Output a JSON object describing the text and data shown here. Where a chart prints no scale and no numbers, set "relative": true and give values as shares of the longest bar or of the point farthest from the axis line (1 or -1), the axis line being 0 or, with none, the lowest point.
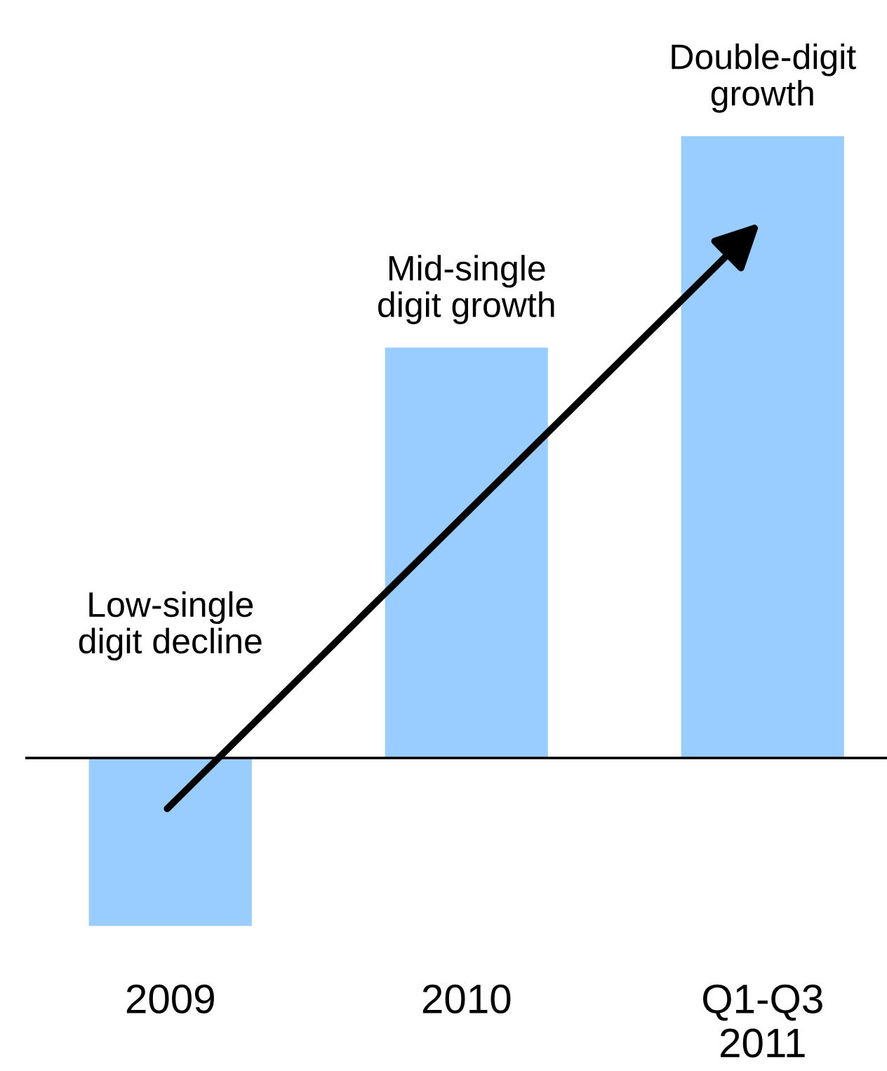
{
  "chart_data": {
    "type": "bar",
    "relative": true,
    "categories": [
      "2009",
      "2010",
      "Q1-Q3\n2011"
    ],
    "values": [
      -0.27,
      0.66,
      1
    ],
    "color": "#99ccff",
    "annotations": [
      "Low-single\ndigit decline",
      {
        "text": "Mid-single\ndigit growth",
        "x": "2010",
        "y": 0.66
      },
      {
        "text": "Double-digit\ngrowth",
        "x": "Q1-Q3\n2011",
        "y": 1
      }
    ]
  }
}
